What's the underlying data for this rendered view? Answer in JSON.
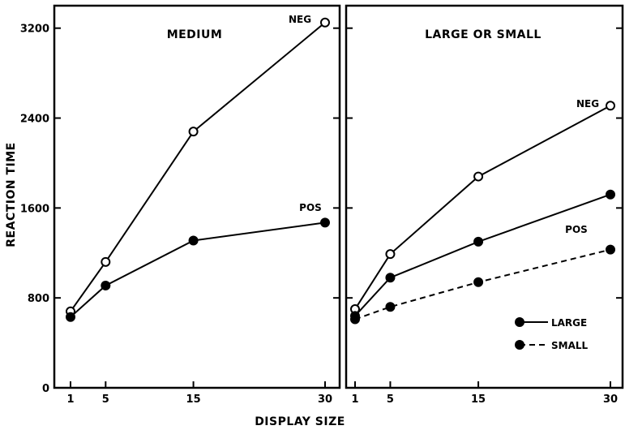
{
  "chart_data": {
    "type": "line",
    "xlabel": "DISPLAY SIZE",
    "ylabel": "REACTION TIME",
    "ylim": [
      0,
      3400
    ],
    "yticks": [
      0,
      800,
      1600,
      2400,
      3200
    ],
    "xticks": [
      1,
      5,
      15,
      30
    ],
    "xlim": [
      0,
      31.5
    ],
    "grid": false,
    "panels": [
      {
        "title": "MEDIUM",
        "series": [
          {
            "name": "NEG",
            "marker": "open",
            "style": "solid",
            "x": [
              1,
              5,
              15,
              30
            ],
            "values": [
              680,
              1120,
              2280,
              3250
            ]
          },
          {
            "name": "POS",
            "marker": "filled",
            "style": "solid",
            "x": [
              1,
              5,
              15,
              30
            ],
            "values": [
              630,
              910,
              1310,
              1470
            ]
          }
        ]
      },
      {
        "title": "LARGE OR SMALL",
        "series": [
          {
            "name": "NEG",
            "marker": "open",
            "style": "solid",
            "x": [
              1,
              5,
              15,
              30
            ],
            "values": [
              700,
              1190,
              1880,
              2510
            ]
          },
          {
            "name": "POS",
            "marker": "filled",
            "style": "solid",
            "x": [
              1,
              5,
              15,
              30
            ],
            "values": [
              640,
              980,
              1300,
              1720
            ]
          },
          {
            "name": "",
            "marker": "filled",
            "style": "dashed",
            "x": [
              1,
              5,
              15,
              30
            ],
            "values": [
              610,
              720,
              940,
              1230
            ]
          }
        ],
        "legend": {
          "placement": "bottom-right",
          "entries": [
            {
              "label": "LARGE",
              "style": "solid"
            },
            {
              "label": "SMALL",
              "style": "dashed"
            }
          ]
        },
        "extra_labels": [
          "POS"
        ]
      }
    ]
  }
}
